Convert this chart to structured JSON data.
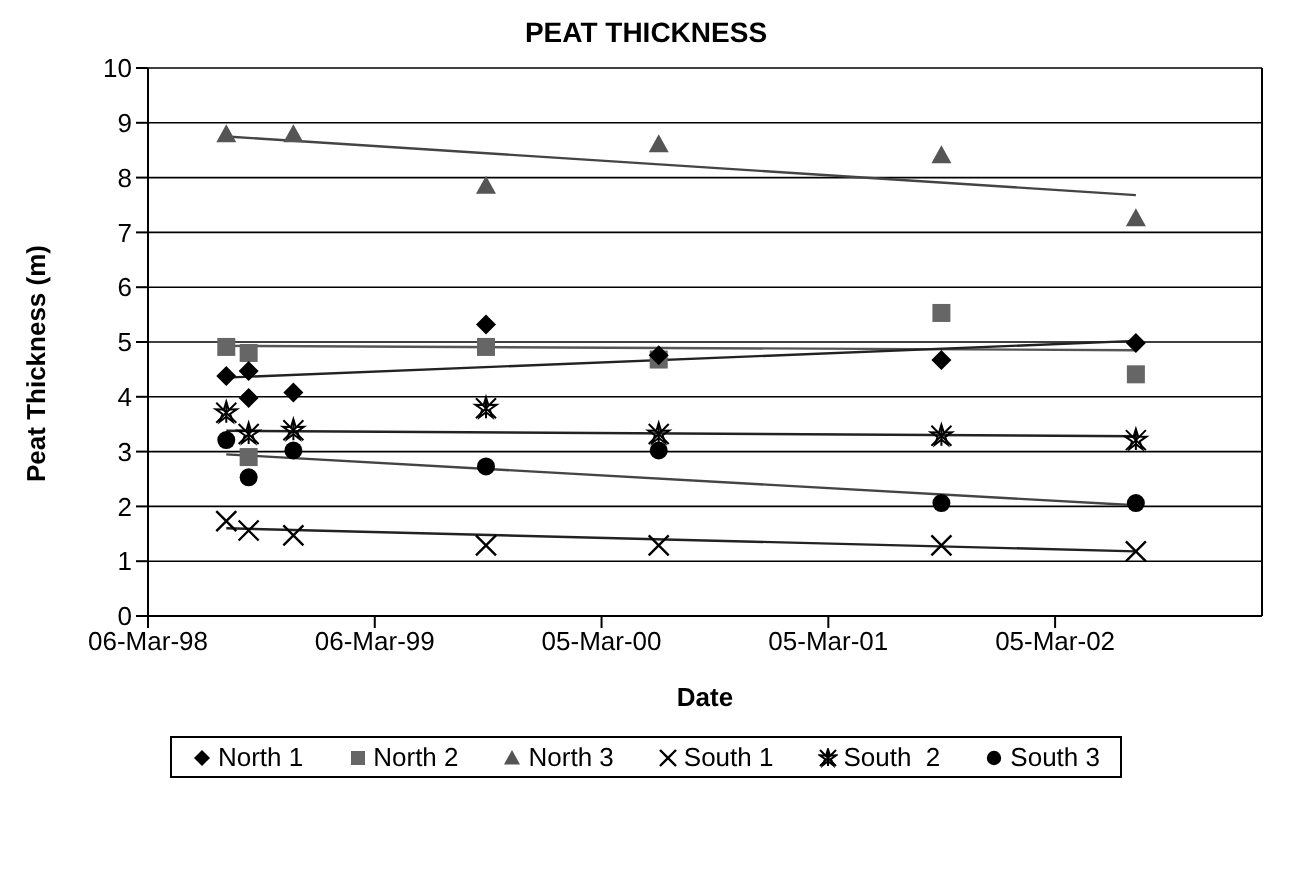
{
  "chart_data": {
    "type": "scatter",
    "title": "PEAT THICKNESS",
    "xlabel": "Date",
    "ylabel": "Peat Thickness (m)",
    "xlim": [
      "1998-03-06",
      "2003-02-01"
    ],
    "xticks": [
      {
        "value": "1998-03-06",
        "label": "06-Mar-98"
      },
      {
        "value": "1999-03-06",
        "label": "06-Mar-99"
      },
      {
        "value": "2000-03-05",
        "label": "05-Mar-00"
      },
      {
        "value": "2001-03-05",
        "label": "05-Mar-01"
      },
      {
        "value": "2002-03-05",
        "label": "05-Mar-02"
      }
    ],
    "ylim": [
      0,
      10
    ],
    "yticks": [
      0,
      1,
      2,
      3,
      4,
      5,
      6,
      7,
      8,
      9,
      10
    ],
    "grid": "y",
    "legend": "bottom",
    "series": [
      {
        "name": "North 1",
        "marker": "diamond",
        "color": "#000000",
        "x": [
          "1998-07-10",
          "1998-08-15",
          "1998-08-15",
          "1998-10-26",
          "1999-09-01",
          "2000-06-05",
          "2001-09-03",
          "2002-07-13"
        ],
        "values": [
          4.38,
          4.47,
          3.98,
          4.08,
          5.32,
          4.76,
          4.67,
          4.98
        ]
      },
      {
        "name": "North 2",
        "marker": "square",
        "color": "#666666",
        "x": [
          "1998-07-10",
          "1998-08-15",
          "1998-08-15",
          "1999-09-01",
          "2000-06-05",
          "2001-09-03",
          "2002-07-13"
        ],
        "values": [
          4.91,
          4.8,
          2.9,
          4.91,
          4.68,
          5.53,
          4.41
        ]
      },
      {
        "name": "North 3",
        "marker": "triangle",
        "color": "#555555",
        "x": [
          "1998-07-10",
          "1998-10-26",
          "1999-09-01",
          "2000-06-05",
          "2001-09-03",
          "2002-07-13"
        ],
        "values": [
          8.79,
          8.79,
          7.85,
          8.61,
          8.41,
          7.26
        ]
      },
      {
        "name": "South 1",
        "marker": "cross",
        "color": "#000000",
        "x": [
          "1998-07-10",
          "1998-08-15",
          "1998-10-26",
          "1999-09-01",
          "2000-06-05",
          "2001-09-03",
          "2002-07-13"
        ],
        "values": [
          1.73,
          1.56,
          1.47,
          1.29,
          1.29,
          1.29,
          1.18
        ]
      },
      {
        "name": "South  2",
        "marker": "star",
        "color": "#000000",
        "x": [
          "1998-07-10",
          "1998-08-15",
          "1998-10-26",
          "1999-09-01",
          "2000-06-05",
          "2001-09-03",
          "2002-07-13"
        ],
        "values": [
          3.71,
          3.32,
          3.39,
          3.79,
          3.32,
          3.29,
          3.21
        ]
      },
      {
        "name": "South 3",
        "marker": "circle",
        "color": "#000000",
        "x": [
          "1998-07-10",
          "1998-08-15",
          "1998-10-26",
          "1999-09-01",
          "2000-06-05",
          "2001-09-03",
          "2002-07-13"
        ],
        "values": [
          3.21,
          2.53,
          3.02,
          2.73,
          3.02,
          2.06,
          2.06
        ]
      },
      {
        "type": "line",
        "color": "#222222",
        "x": [
          "1998-07-10",
          "2002-07-13"
        ],
        "values": [
          4.35,
          5.02
        ]
      },
      {
        "type": "line",
        "color": "#555555",
        "x": [
          "1998-07-10",
          "2002-07-13"
        ],
        "values": [
          4.93,
          4.85
        ]
      },
      {
        "type": "line",
        "color": "#444444",
        "x": [
          "1998-07-10",
          "2002-07-13"
        ],
        "values": [
          8.75,
          7.68
        ]
      },
      {
        "type": "line",
        "color": "#222222",
        "x": [
          "1998-07-10",
          "2002-07-13"
        ],
        "values": [
          1.6,
          1.18
        ]
      },
      {
        "type": "line",
        "color": "#222222",
        "x": [
          "1998-07-10",
          "2002-07-13"
        ],
        "values": [
          3.38,
          3.28
        ]
      },
      {
        "type": "line",
        "color": "#444444",
        "x": [
          "1998-07-10",
          "2002-07-13"
        ],
        "values": [
          2.95,
          2.02
        ]
      }
    ]
  }
}
